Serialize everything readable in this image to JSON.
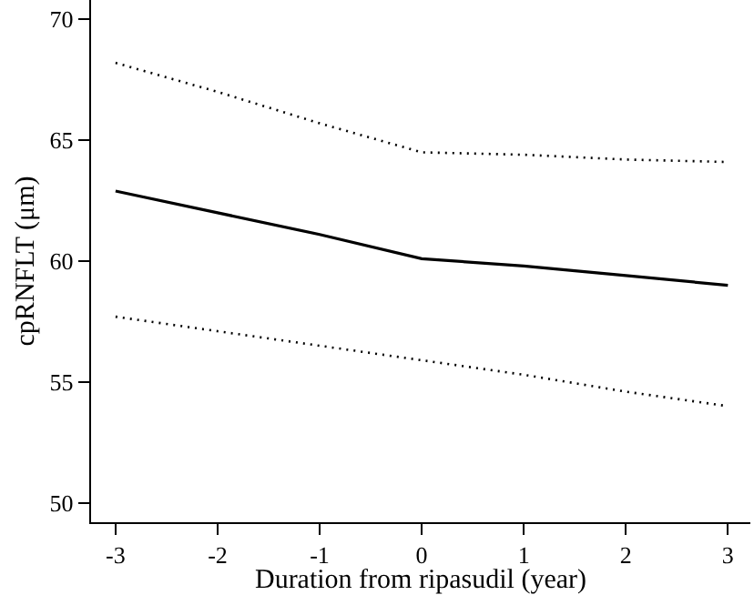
{
  "chart_data": {
    "type": "line",
    "xlabel": "Duration from ripasudil (year)",
    "ylabel": "cpRNFLT (μm)",
    "x": [
      -3,
      -2,
      -1,
      0,
      1,
      2,
      3
    ],
    "series": [
      {
        "color": "#000000",
        "line_style": "solid",
        "values": [
          62.9,
          62.0,
          61.1,
          60.1,
          59.8,
          59.4,
          59.0
        ]
      },
      {
        "color": "#000000",
        "line_style": "dotted",
        "values": [
          68.2,
          67.0,
          65.7,
          64.5,
          64.4,
          64.2,
          64.1
        ]
      },
      {
        "color": "#000000",
        "line_style": "dotted",
        "values": [
          57.7,
          57.1,
          56.5,
          55.9,
          55.3,
          54.6,
          54.0
        ]
      }
    ],
    "xlim": [
      -3.24,
      3.22
    ],
    "ylim": [
      49.2,
      70.8
    ],
    "xticks": [
      -3,
      -2,
      -1,
      0,
      1,
      2,
      3
    ],
    "yticks": [
      50,
      55,
      60,
      65,
      70
    ],
    "marker": "none"
  }
}
